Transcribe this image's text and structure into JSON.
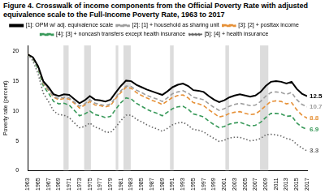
{
  "chart_data": {
    "type": "line",
    "title": "Figure 4. Crosswalk of income components from the Official Poverty Rate with adjusted equivalence scale to the Full-Income Poverty Rate, 1963 to 2017",
    "y_label": "Poverty rate (percent)",
    "x": [
      1963,
      1964,
      1965,
      1966,
      1967,
      1968,
      1969,
      1970,
      1971,
      1972,
      1973,
      1974,
      1975,
      1976,
      1977,
      1978,
      1979,
      1980,
      1981,
      1982,
      1983,
      1984,
      1985,
      1986,
      1987,
      1988,
      1989,
      1990,
      1991,
      1992,
      1993,
      1994,
      1995,
      1996,
      1997,
      1998,
      1999,
      2000,
      2001,
      2002,
      2003,
      2004,
      2005,
      2006,
      2007,
      2008,
      2009,
      2010,
      2011,
      2012,
      2013,
      2014,
      2015,
      2016,
      2017
    ],
    "xlim": [
      1963,
      2017
    ],
    "xticks": [
      1963,
      1965,
      1967,
      1969,
      1971,
      1973,
      1975,
      1977,
      1979,
      1981,
      1983,
      1985,
      1987,
      1989,
      1991,
      1993,
      1995,
      1997,
      1999,
      2001,
      2003,
      2005,
      2007,
      2009,
      2011,
      2013,
      2015,
      2017
    ],
    "ylim": [
      0,
      21
    ],
    "yticks": [
      0,
      5,
      10,
      15,
      20
    ],
    "grid": false,
    "legend": "top",
    "shaded_periods": [
      [
        1969.9,
        1970.9
      ],
      [
        1973.9,
        1975.2
      ],
      [
        1980.0,
        1980.5
      ],
      [
        1981.5,
        1982.9
      ],
      [
        1990.5,
        1991.2
      ],
      [
        2001.2,
        2001.9
      ],
      [
        2007.9,
        2009.5
      ]
    ],
    "series": [
      {
        "name": "[1]: OPM w/ adj. equivalence scale",
        "color": "#000000",
        "line_style": "solid",
        "values": [
          19.5,
          19.0,
          17.5,
          15.0,
          14.0,
          12.8,
          12.5,
          12.8,
          12.7,
          12.0,
          11.3,
          11.8,
          12.5,
          11.9,
          11.8,
          11.6,
          11.9,
          13.1,
          14.2,
          15.1,
          15.0,
          14.4,
          14.0,
          13.6,
          13.3,
          13.0,
          12.7,
          13.3,
          14.0,
          14.4,
          14.6,
          14.2,
          13.5,
          13.4,
          13.2,
          12.5,
          11.9,
          11.5,
          11.8,
          12.3,
          12.6,
          12.8,
          12.6,
          12.4,
          12.6,
          13.2,
          14.2,
          14.9,
          15.0,
          14.9,
          14.6,
          14.9,
          13.7,
          12.9,
          12.5
        ],
        "value_labels": [
          null,
          null,
          null,
          null,
          null,
          null,
          null,
          null,
          null,
          null,
          null,
          null,
          null,
          null,
          null,
          null,
          null,
          null,
          null,
          null,
          null,
          null,
          null,
          null,
          null,
          null,
          null,
          null,
          null,
          null,
          null,
          null,
          null,
          null,
          null,
          null,
          null,
          null,
          null,
          null,
          null,
          null,
          null,
          null,
          null,
          null,
          null,
          null,
          null,
          null,
          null,
          null,
          null,
          null,
          "12.5"
        ]
      },
      {
        "name": "[2]: [1] + household as sharing unit",
        "color": "#9e9e9e",
        "line_style": "dashed",
        "values": [
          19.5,
          18.9,
          17.3,
          14.7,
          13.6,
          12.4,
          12.1,
          12.3,
          12.2,
          11.5,
          10.8,
          11.2,
          11.9,
          11.3,
          11.1,
          10.9,
          11.2,
          12.3,
          13.4,
          14.2,
          14.1,
          13.5,
          13.1,
          12.6,
          12.3,
          12.0,
          11.6,
          12.2,
          12.9,
          13.2,
          13.4,
          13.0,
          12.3,
          12.1,
          11.9,
          11.2,
          10.6,
          10.1,
          10.4,
          10.8,
          11.1,
          11.3,
          11.1,
          10.9,
          11.0,
          11.6,
          12.5,
          13.1,
          13.2,
          13.1,
          12.8,
          13.1,
          11.9,
          11.1,
          10.7
        ],
        "value_labels": [
          null,
          null,
          null,
          null,
          null,
          null,
          null,
          null,
          null,
          null,
          null,
          null,
          null,
          null,
          null,
          null,
          null,
          null,
          null,
          null,
          null,
          null,
          null,
          null,
          null,
          null,
          null,
          null,
          null,
          null,
          null,
          null,
          null,
          null,
          null,
          null,
          null,
          null,
          null,
          null,
          null,
          null,
          null,
          null,
          null,
          null,
          null,
          null,
          null,
          null,
          null,
          null,
          null,
          null,
          "10.7"
        ]
      },
      {
        "name": "[3]: [2] + posttax income",
        "color": "#e69138",
        "line_style": "dashed",
        "values": [
          19.5,
          18.9,
          17.3,
          14.6,
          13.5,
          12.3,
          11.9,
          12.1,
          12.0,
          11.3,
          10.5,
          11.0,
          11.6,
          11.0,
          10.9,
          10.7,
          10.9,
          12.1,
          13.1,
          14.0,
          13.8,
          13.1,
          12.6,
          12.2,
          11.8,
          11.5,
          11.1,
          11.7,
          12.3,
          12.6,
          12.7,
          12.2,
          11.4,
          11.2,
          10.9,
          10.2,
          9.6,
          9.0,
          9.2,
          9.6,
          9.8,
          9.9,
          9.6,
          9.4,
          9.5,
          10.1,
          10.9,
          11.6,
          11.7,
          11.6,
          11.2,
          11.4,
          10.2,
          9.3,
          8.8
        ],
        "value_labels": [
          null,
          null,
          null,
          null,
          null,
          null,
          null,
          null,
          null,
          null,
          null,
          null,
          null,
          null,
          null,
          null,
          null,
          null,
          null,
          null,
          null,
          null,
          null,
          null,
          null,
          null,
          null,
          null,
          null,
          null,
          null,
          null,
          null,
          null,
          null,
          null,
          null,
          null,
          null,
          null,
          null,
          null,
          null,
          null,
          null,
          null,
          null,
          null,
          null,
          null,
          null,
          null,
          null,
          null,
          "8.8"
        ]
      },
      {
        "name": "[4]: [3] + noncash transfers except health insurance",
        "color": "#3a9a5b",
        "line_style": "dashed",
        "values": [
          19.5,
          18.8,
          17.0,
          14.2,
          13.0,
          11.6,
          11.2,
          11.3,
          11.0,
          10.1,
          9.2,
          9.5,
          10.0,
          9.4,
          9.2,
          8.9,
          9.1,
          10.3,
          11.4,
          12.2,
          12.0,
          11.3,
          10.8,
          10.3,
          9.9,
          9.6,
          9.2,
          9.8,
          10.4,
          10.7,
          10.8,
          10.3,
          9.5,
          9.3,
          9.0,
          8.3,
          7.7,
          7.2,
          7.4,
          7.8,
          8.0,
          8.1,
          7.8,
          7.5,
          7.6,
          8.1,
          8.9,
          9.6,
          9.6,
          9.5,
          9.1,
          9.2,
          8.0,
          7.3,
          6.9
        ],
        "value_labels": [
          null,
          null,
          null,
          null,
          null,
          null,
          null,
          null,
          null,
          null,
          null,
          null,
          null,
          null,
          null,
          null,
          null,
          null,
          null,
          null,
          null,
          null,
          null,
          null,
          null,
          null,
          null,
          null,
          null,
          null,
          null,
          null,
          null,
          null,
          null,
          null,
          null,
          null,
          null,
          null,
          null,
          null,
          null,
          null,
          null,
          null,
          null,
          null,
          null,
          null,
          null,
          null,
          null,
          null,
          "6.9"
        ]
      },
      {
        "name": "[5]: [4] + health insurance",
        "color": "#666666",
        "line_style": "dotted",
        "values": [
          19.5,
          18.4,
          16.2,
          13.0,
          11.6,
          10.0,
          9.4,
          9.3,
          8.9,
          8.0,
          7.2,
          7.4,
          8.0,
          7.3,
          7.0,
          6.5,
          6.4,
          7.3,
          8.4,
          9.3,
          9.3,
          8.6,
          8.2,
          7.7,
          7.3,
          7.0,
          6.6,
          7.1,
          7.7,
          8.0,
          8.1,
          7.6,
          6.9,
          6.8,
          6.5,
          5.9,
          5.4,
          4.9,
          5.1,
          5.5,
          5.6,
          5.6,
          5.3,
          5.0,
          5.1,
          5.4,
          6.0,
          6.1,
          6.0,
          5.8,
          5.4,
          5.2,
          4.4,
          3.8,
          3.3
        ],
        "value_labels": [
          null,
          null,
          null,
          null,
          null,
          null,
          null,
          null,
          null,
          null,
          null,
          null,
          null,
          null,
          null,
          null,
          null,
          null,
          null,
          null,
          null,
          null,
          null,
          null,
          null,
          null,
          null,
          null,
          null,
          null,
          null,
          null,
          null,
          null,
          null,
          null,
          null,
          null,
          null,
          null,
          null,
          null,
          null,
          null,
          null,
          null,
          null,
          null,
          null,
          null,
          null,
          null,
          null,
          null,
          "3.3"
        ]
      }
    ]
  }
}
